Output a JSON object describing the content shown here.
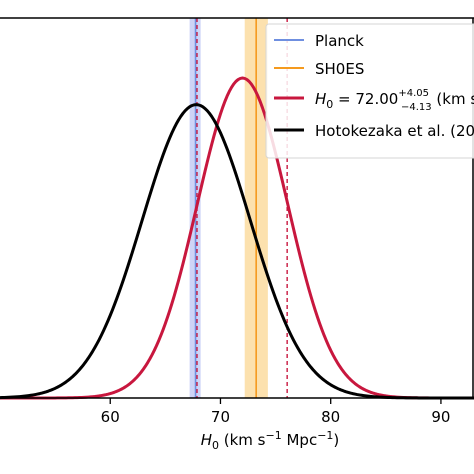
{
  "chart_data": {
    "type": "line",
    "xlabel": "H_0 (km s^-1 Mpc^-1)",
    "x_ticks": [
      60,
      70,
      80,
      90
    ],
    "xlim": [
      50,
      93
    ],
    "ylim": [
      0,
      1.0
    ],
    "legend_placement": "top-right",
    "series": [
      {
        "name": "Planck",
        "kind": "vline_band",
        "x": 67.74,
        "band": [
          67.2,
          68.2
        ],
        "color": "#6f8fe0",
        "band_color": "#c6ccf4"
      },
      {
        "name": "SH0ES",
        "kind": "vline_band",
        "x": 73.24,
        "band": [
          72.2,
          74.3
        ],
        "color": "#f59a1e",
        "band_color": "#fcdca0"
      },
      {
        "name": "H_0 = 72.00 +4.05 -4.13 (km s",
        "kind": "curve",
        "color": "#c8173e",
        "mean": 72.0,
        "sigma": 4.1,
        "peak": 0.842,
        "credible_interval_dashed": [
          67.87,
          76.05
        ],
        "x": [
          50,
          55,
          58,
          60,
          62,
          64,
          66,
          68,
          69,
          70,
          71,
          72,
          73,
          74,
          75,
          76,
          78,
          80,
          82,
          84,
          86,
          88,
          90,
          93
        ],
        "y": [
          0.0,
          0.0,
          0.001,
          0.004,
          0.017,
          0.06,
          0.162,
          0.347,
          0.479,
          0.619,
          0.744,
          0.842,
          0.82,
          0.746,
          0.648,
          0.528,
          0.29,
          0.125,
          0.041,
          0.01,
          0.002,
          0.0,
          0.0,
          0.0
        ]
      },
      {
        "name": "Hotokezaka et al. (20",
        "kind": "curve",
        "color": "#000000",
        "mean": 67.8,
        "sigma": 4.9,
        "peak": 0.772,
        "x": [
          50,
          53,
          55,
          57,
          59,
          61,
          63,
          65,
          66,
          67,
          67.8,
          69,
          70,
          71,
          72,
          74,
          76,
          78,
          80,
          82,
          84,
          86,
          88,
          90,
          93
        ],
        "y": [
          0.0,
          0.002,
          0.012,
          0.041,
          0.118,
          0.256,
          0.453,
          0.636,
          0.717,
          0.762,
          0.772,
          0.746,
          0.705,
          0.637,
          0.558,
          0.392,
          0.24,
          0.123,
          0.048,
          0.015,
          0.004,
          0.001,
          0.0,
          0.0,
          0.0
        ]
      }
    ]
  }
}
